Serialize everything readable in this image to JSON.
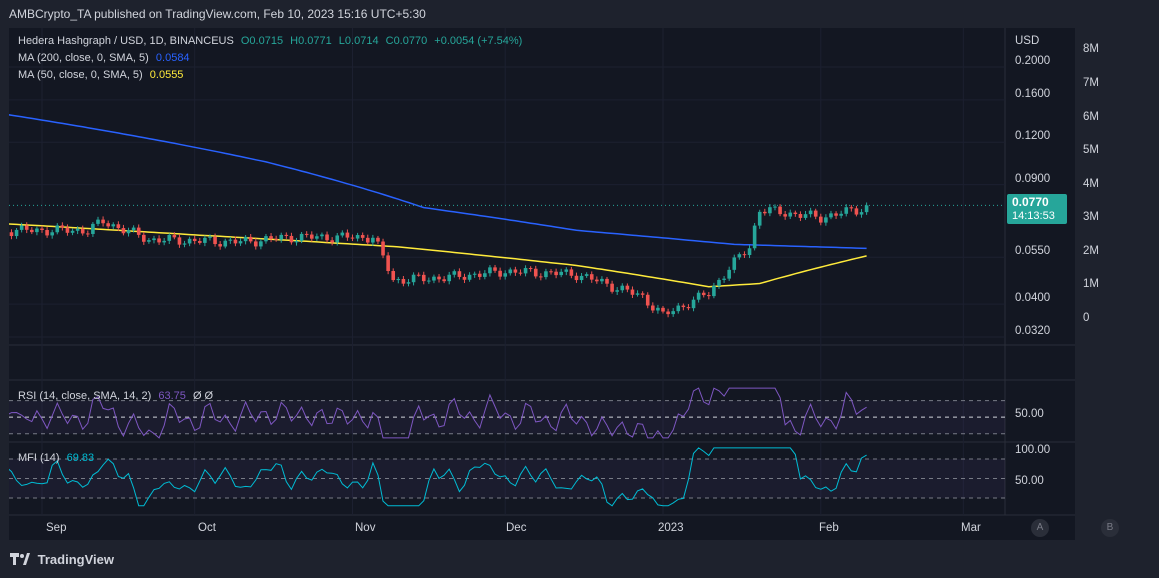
{
  "header": {
    "publisher": "AMBCrypto_TA published on TradingView.com, Feb 10, 2023 15:16 UTC+5:30"
  },
  "legend": {
    "symbol": "Hedera Hashgraph / USD, 1D, BINANCEUS",
    "open": "O0.0715",
    "high": "H0.0771",
    "low": "L0.0714",
    "close": "C0.0770",
    "change": "+0.0054 (+7.54%)",
    "ma200_label": "MA (200, close, 0, SMA, 5)",
    "ma200_value": "0.0584",
    "ma50_label": "MA (50, close, 0, SMA, 5)",
    "ma50_value": "0.0555",
    "rsi_label": "RSI (14, close, SMA, 14, 2)",
    "rsi_value": "63.75",
    "rsi_extra": "Ø Ø",
    "mfi_label": "MFI (14)",
    "mfi_value": "69.83"
  },
  "price_axis": {
    "currency": "USD",
    "ticks": [
      "0.2000",
      "0.1600",
      "0.1200",
      "0.0900",
      "0.0550",
      "0.0400",
      "0.0320"
    ],
    "last_price": "0.0770",
    "countdown": "14:13:53"
  },
  "volume_axis": {
    "ticks": [
      "8M",
      "7M",
      "6M",
      "5M",
      "4M",
      "3M",
      "2M",
      "1M",
      "0"
    ]
  },
  "rsi_axis": {
    "ticks": [
      "50.00"
    ]
  },
  "mfi_axis": {
    "ticks": [
      "100.00",
      "50.00"
    ]
  },
  "time_axis": {
    "labels": [
      "Sep",
      "Oct",
      "Nov",
      "Dec",
      "2023",
      "Feb",
      "Mar"
    ]
  },
  "buttons": {
    "a": "A",
    "b": "B"
  },
  "footer": {
    "brand": "TradingView"
  },
  "colors": {
    "up": "#26a69a",
    "down": "#ef5350",
    "ma200": "#2962ff",
    "ma50": "#ffeb3b",
    "rsi": "#7e57c2",
    "mfi": "#00bcd4",
    "background": "#131722"
  },
  "chart_data": {
    "type": "candlestick",
    "title": "Hedera Hashgraph / USD, 1D, BINANCEUS",
    "x_range": [
      "Aug 2022",
      "Mar 2023"
    ],
    "y_scale": "log",
    "close_anchors": [
      {
        "date": "Aug 25",
        "close": 0.066
      },
      {
        "date": "Sep 10",
        "close": 0.066
      },
      {
        "date": "Sep 13",
        "close": 0.07
      },
      {
        "date": "Sep 22",
        "close": 0.062
      },
      {
        "date": "Oct 10",
        "close": 0.061
      },
      {
        "date": "Oct 20",
        "close": 0.063
      },
      {
        "date": "Nov 5",
        "close": 0.063
      },
      {
        "date": "Nov 9",
        "close": 0.047
      },
      {
        "date": "Nov 20",
        "close": 0.048
      },
      {
        "date": "Dec 1",
        "close": 0.05
      },
      {
        "date": "Dec 15",
        "close": 0.049
      },
      {
        "date": "Dec 28",
        "close": 0.042
      },
      {
        "date": "Jan 1",
        "close": 0.037
      },
      {
        "date": "Jan 10",
        "close": 0.043
      },
      {
        "date": "Jan 18",
        "close": 0.059
      },
      {
        "date": "Jan 20",
        "close": 0.076
      },
      {
        "date": "Feb 1",
        "close": 0.072
      },
      {
        "date": "Feb 10",
        "close": 0.077
      }
    ],
    "ma200_anchors": [
      {
        "date": "Aug 25",
        "value": 0.145
      },
      {
        "date": "Oct 15",
        "value": 0.105
      },
      {
        "date": "Nov 15",
        "value": 0.077
      },
      {
        "date": "Dec 15",
        "value": 0.066
      },
      {
        "date": "Jan 15",
        "value": 0.06
      },
      {
        "date": "Feb 10",
        "value": 0.0584
      }
    ],
    "ma50_anchors": [
      {
        "date": "Aug 25",
        "value": 0.069
      },
      {
        "date": "Oct 1",
        "value": 0.064
      },
      {
        "date": "Nov 10",
        "value": 0.059
      },
      {
        "date": "Dec 15",
        "value": 0.052
      },
      {
        "date": "Jan 10",
        "value": 0.045
      },
      {
        "date": "Jan 20",
        "value": 0.046
      },
      {
        "date": "Feb 10",
        "value": 0.0555
      }
    ],
    "rsi_level_lines": [
      70,
      50,
      30
    ],
    "mfi_level_lines": [
      80,
      50,
      20
    ]
  }
}
